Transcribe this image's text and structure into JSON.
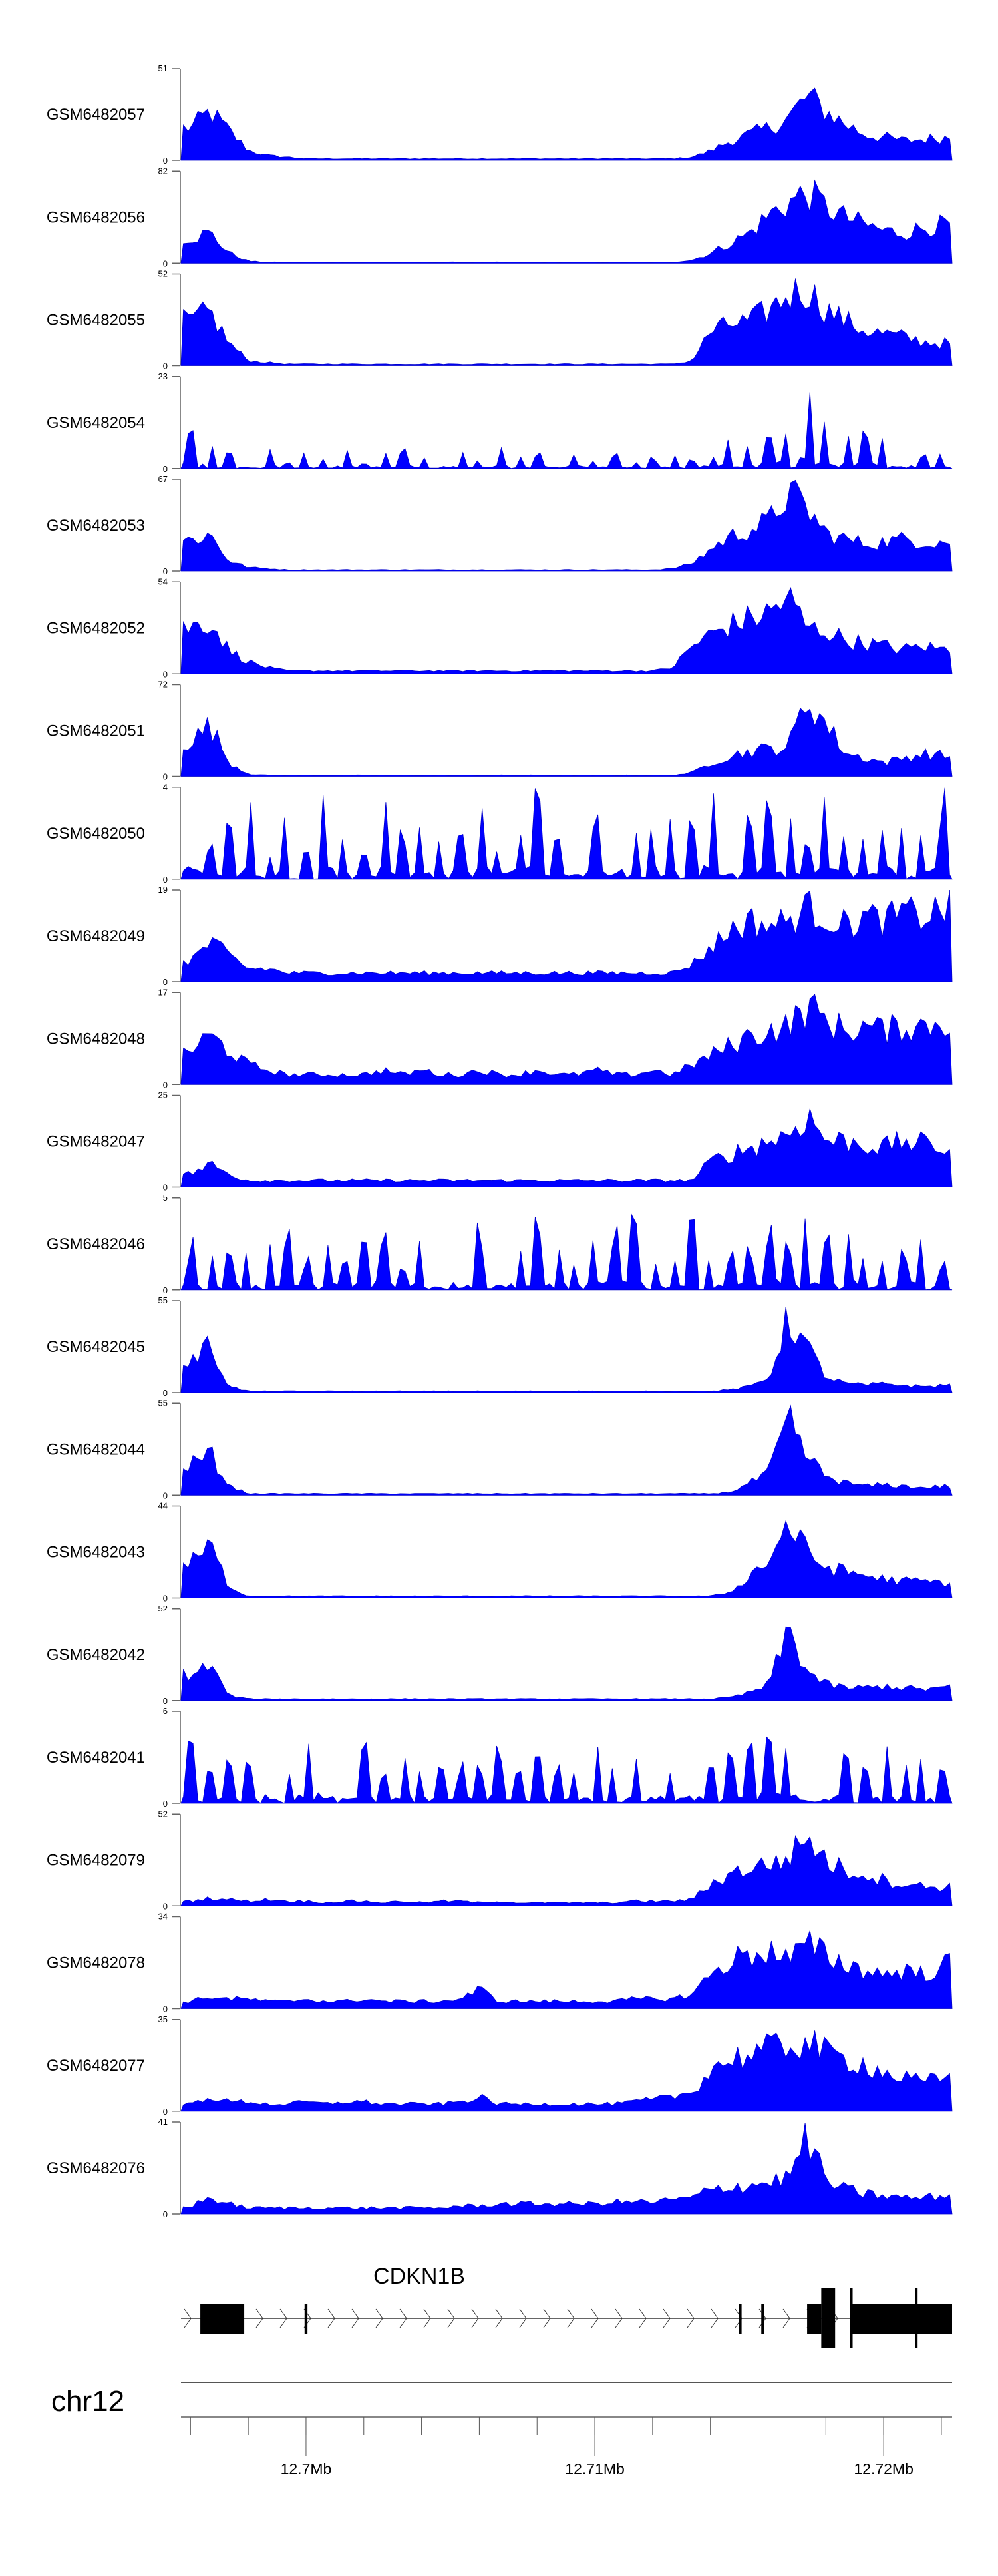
{
  "chart_data": {
    "type": "area",
    "xlabel": "",
    "x_range_mb": [
      12.69567,
      12.72237
    ],
    "fill_color": "#0000FF",
    "n_bins": 40,
    "tracks": [
      {
        "name": "GSM6482057",
        "ymax": 51,
        "style": "smooth",
        "values": [
          20,
          30,
          18,
          6,
          3,
          2,
          1,
          1,
          1,
          1,
          1,
          1,
          1,
          1,
          1,
          1,
          1,
          1,
          1,
          1,
          1,
          1,
          1,
          1,
          1,
          1,
          2,
          6,
          12,
          16,
          20,
          26,
          40,
          30,
          22,
          16,
          14,
          12,
          13,
          14
        ]
      },
      {
        "name": "GSM6482056",
        "ymax": 82,
        "style": "smooth",
        "values": [
          25,
          30,
          10,
          2,
          1,
          1,
          1,
          1,
          1,
          1,
          1,
          1,
          1,
          1,
          1,
          1,
          1,
          1,
          1,
          1,
          1,
          1,
          1,
          1,
          1,
          1,
          3,
          10,
          20,
          30,
          48,
          60,
          70,
          55,
          45,
          38,
          32,
          30,
          35,
          38
        ]
      },
      {
        "name": "GSM6482055",
        "ymax": 52,
        "style": "smooth",
        "values": [
          28,
          34,
          14,
          3,
          2,
          1,
          1,
          1,
          1,
          1,
          1,
          1,
          1,
          1,
          1,
          1,
          1,
          1,
          1,
          1,
          1,
          1,
          1,
          1,
          1,
          1,
          3,
          22,
          26,
          28,
          35,
          45,
          48,
          35,
          28,
          22,
          20,
          18,
          15,
          14
        ]
      },
      {
        "name": "GSM6482054",
        "ymax": 23,
        "style": "spiky",
        "values": [
          12,
          8,
          5,
          3,
          6,
          2,
          4,
          3,
          5,
          2,
          4,
          6,
          3,
          4,
          5,
          3,
          7,
          3,
          4,
          2,
          5,
          3,
          4,
          2,
          3,
          4,
          3,
          5,
          8,
          6,
          10,
          14,
          23,
          12,
          9,
          10,
          8,
          6,
          5,
          7
        ]
      },
      {
        "name": "GSM6482053",
        "ymax": 67,
        "style": "smooth",
        "values": [
          25,
          30,
          8,
          3,
          2,
          1,
          1,
          1,
          1,
          1,
          1,
          1,
          1,
          1,
          1,
          1,
          1,
          1,
          1,
          1,
          1,
          1,
          1,
          1,
          1,
          2,
          6,
          18,
          28,
          34,
          40,
          64,
          50,
          30,
          26,
          22,
          24,
          26,
          24,
          24
        ]
      },
      {
        "name": "GSM6482052",
        "ymax": 54,
        "style": "smooth",
        "values": [
          30,
          35,
          15,
          8,
          4,
          2,
          2,
          2,
          2,
          2,
          2,
          2,
          2,
          2,
          2,
          2,
          2,
          2,
          2,
          2,
          2,
          2,
          2,
          2,
          2,
          4,
          18,
          26,
          32,
          36,
          40,
          50,
          30,
          28,
          22,
          20,
          18,
          16,
          18,
          16
        ]
      },
      {
        "name": "GSM6482051",
        "ymax": 72,
        "style": "smooth",
        "values": [
          30,
          45,
          12,
          2,
          1,
          1,
          1,
          1,
          1,
          1,
          1,
          1,
          1,
          1,
          1,
          1,
          1,
          1,
          1,
          1,
          1,
          1,
          1,
          1,
          1,
          1,
          3,
          12,
          18,
          22,
          24,
          26,
          68,
          45,
          20,
          16,
          12,
          16,
          20,
          18
        ]
      },
      {
        "name": "GSM6482050",
        "ymax": 4,
        "style": "spiky",
        "values": [
          4,
          2,
          3,
          4,
          1,
          3,
          2,
          4,
          3,
          2,
          4,
          3,
          4,
          2,
          3,
          4,
          2,
          3,
          4,
          3,
          2,
          4,
          3,
          2,
          4,
          3,
          3,
          4,
          2,
          3,
          4,
          3,
          2,
          4,
          3,
          2,
          4,
          3,
          3,
          4
        ]
      },
      {
        "name": "GSM6482049",
        "ymax": 19,
        "style": "smooth",
        "values": [
          5,
          9,
          6,
          3,
          3,
          2,
          2,
          2,
          2,
          2,
          2,
          2,
          2,
          2,
          2,
          2,
          2,
          2,
          2,
          2,
          2,
          2,
          2,
          2,
          2,
          2,
          4,
          8,
          12,
          14,
          13,
          14,
          17,
          15,
          13,
          15,
          14,
          16,
          15,
          17
        ]
      },
      {
        "name": "GSM6482048",
        "ymax": 17,
        "style": "smooth",
        "values": [
          7,
          10,
          7,
          4,
          3,
          2,
          2,
          2,
          2,
          2,
          3,
          2,
          3,
          2,
          2,
          3,
          2,
          2,
          3,
          2,
          2,
          3,
          2,
          2,
          3,
          2,
          4,
          6,
          8,
          10,
          11,
          12,
          16,
          13,
          11,
          12,
          11,
          12,
          12,
          13
        ]
      },
      {
        "name": "GSM6482047",
        "ymax": 25,
        "style": "smooth",
        "values": [
          4,
          7,
          4,
          2,
          2,
          2,
          2,
          2,
          2,
          2,
          2,
          2,
          2,
          2,
          2,
          2,
          2,
          2,
          2,
          2,
          2,
          2,
          2,
          2,
          2,
          2,
          2,
          8,
          10,
          12,
          14,
          16,
          22,
          14,
          14,
          13,
          12,
          14,
          13,
          12
        ]
      },
      {
        "name": "GSM6482046",
        "ymax": 5,
        "style": "spiky",
        "values": [
          3,
          2,
          3,
          2,
          3,
          4,
          2,
          3,
          2,
          3,
          4,
          2,
          3,
          2,
          3,
          4,
          2,
          3,
          4,
          3,
          2,
          3,
          4,
          5,
          2,
          3,
          5,
          2,
          3,
          3,
          4,
          3,
          4,
          3,
          4,
          3,
          2,
          3,
          3,
          2
        ]
      },
      {
        "name": "GSM6482045",
        "ymax": 55,
        "style": "smooth",
        "values": [
          20,
          32,
          4,
          1,
          1,
          1,
          1,
          1,
          1,
          1,
          1,
          1,
          1,
          1,
          1,
          1,
          1,
          1,
          1,
          1,
          1,
          1,
          1,
          1,
          1,
          1,
          1,
          1,
          2,
          4,
          10,
          50,
          30,
          10,
          6,
          5,
          6,
          5,
          4,
          5
        ]
      },
      {
        "name": "GSM6482044",
        "ymax": 55,
        "style": "smooth",
        "values": [
          20,
          28,
          6,
          1,
          1,
          1,
          1,
          1,
          1,
          1,
          1,
          1,
          1,
          1,
          1,
          1,
          1,
          1,
          1,
          1,
          1,
          1,
          1,
          1,
          1,
          1,
          1,
          1,
          2,
          8,
          15,
          50,
          25,
          12,
          8,
          6,
          7,
          6,
          5,
          6
        ]
      },
      {
        "name": "GSM6482043",
        "ymax": 44,
        "style": "smooth",
        "values": [
          18,
          28,
          6,
          1,
          1,
          1,
          1,
          1,
          1,
          1,
          1,
          1,
          1,
          1,
          1,
          1,
          1,
          1,
          1,
          1,
          1,
          1,
          1,
          1,
          1,
          1,
          1,
          1,
          3,
          12,
          20,
          40,
          24,
          16,
          14,
          12,
          10,
          9,
          9,
          8
        ]
      },
      {
        "name": "GSM6482042",
        "ymax": 52,
        "style": "smooth",
        "values": [
          16,
          22,
          3,
          1,
          1,
          1,
          1,
          1,
          1,
          1,
          1,
          1,
          1,
          1,
          1,
          1,
          1,
          1,
          1,
          1,
          1,
          1,
          1,
          1,
          1,
          1,
          1,
          1,
          2,
          5,
          10,
          45,
          18,
          10,
          8,
          8,
          9,
          8,
          7,
          8
        ]
      },
      {
        "name": "GSM6482041",
        "ymax": 6,
        "style": "spiky",
        "values": [
          5,
          3,
          4,
          3,
          4,
          3,
          4,
          5,
          3,
          6,
          3,
          4,
          3,
          4,
          3,
          3,
          4,
          3,
          4,
          3,
          3,
          4,
          3,
          3,
          4,
          3,
          4,
          3,
          4,
          4,
          6,
          4,
          3,
          4,
          4,
          3,
          4,
          3,
          3,
          4
        ]
      },
      {
        "name": "GSM6482079",
        "ymax": 52,
        "style": "smooth",
        "values": [
          3,
          5,
          4,
          3,
          4,
          3,
          3,
          2,
          3,
          3,
          2,
          3,
          2,
          3,
          3,
          2,
          3,
          2,
          2,
          2,
          2,
          2,
          2,
          3,
          3,
          3,
          4,
          14,
          20,
          24,
          26,
          30,
          44,
          28,
          22,
          20,
          16,
          14,
          12,
          12
        ]
      },
      {
        "name": "GSM6482078",
        "ymax": 34,
        "style": "smooth",
        "values": [
          3,
          5,
          4,
          4,
          3,
          3,
          4,
          3,
          3,
          4,
          3,
          3,
          3,
          3,
          4,
          8,
          3,
          3,
          3,
          3,
          3,
          3,
          3,
          4,
          4,
          4,
          6,
          14,
          20,
          22,
          24,
          20,
          26,
          22,
          18,
          16,
          14,
          16,
          14,
          18
        ]
      },
      {
        "name": "GSM6482077",
        "ymax": 35,
        "style": "smooth",
        "values": [
          3,
          6,
          4,
          4,
          3,
          3,
          4,
          3,
          4,
          4,
          3,
          3,
          3,
          3,
          4,
          6,
          3,
          3,
          3,
          3,
          3,
          3,
          3,
          4,
          5,
          6,
          8,
          18,
          22,
          24,
          26,
          28,
          30,
          24,
          22,
          20,
          16,
          14,
          12,
          14
        ]
      },
      {
        "name": "GSM6482076",
        "ymax": 41,
        "style": "smooth",
        "values": [
          4,
          8,
          5,
          3,
          3,
          3,
          3,
          3,
          3,
          3,
          3,
          3,
          3,
          3,
          4,
          4,
          5,
          5,
          5,
          5,
          5,
          5,
          6,
          6,
          6,
          7,
          8,
          12,
          14,
          14,
          16,
          18,
          38,
          16,
          12,
          10,
          9,
          8,
          8,
          9
        ]
      }
    ],
    "y_zero_label": "0",
    "gene": {
      "name": "CDKN1B",
      "strand": "+",
      "start": 12.69567,
      "end": 12.72237,
      "features": [
        {
          "start": 12.69634,
          "end": 12.69786,
          "type": "utr"
        },
        {
          "start": 12.69995,
          "end": 12.70005,
          "type": "utr"
        },
        {
          "start": 12.715,
          "end": 12.71507,
          "type": "utr"
        },
        {
          "start": 12.71577,
          "end": 12.71585,
          "type": "utr"
        },
        {
          "start": 12.71735,
          "end": 12.71784,
          "type": "utr"
        },
        {
          "start": 12.71784,
          "end": 12.71832,
          "type": "cds"
        },
        {
          "start": 12.71884,
          "end": 12.71892,
          "type": "cds"
        },
        {
          "start": 12.71892,
          "end": 12.72237,
          "type": "utr"
        },
        {
          "start": 12.72109,
          "end": 12.72117,
          "type": "cds"
        }
      ]
    },
    "axis": {
      "chromosome": "chr12",
      "minor_ticks": [
        12.696,
        12.698,
        12.7,
        12.702,
        12.704,
        12.706,
        12.708,
        12.71,
        12.712,
        12.714,
        12.716,
        12.718,
        12.72,
        12.722
      ],
      "major_ticks": [
        {
          "value": 12.7,
          "label": "12.7Mb"
        },
        {
          "value": 12.71,
          "label": "12.71Mb"
        },
        {
          "value": 12.72,
          "label": "12.72Mb"
        }
      ]
    }
  }
}
